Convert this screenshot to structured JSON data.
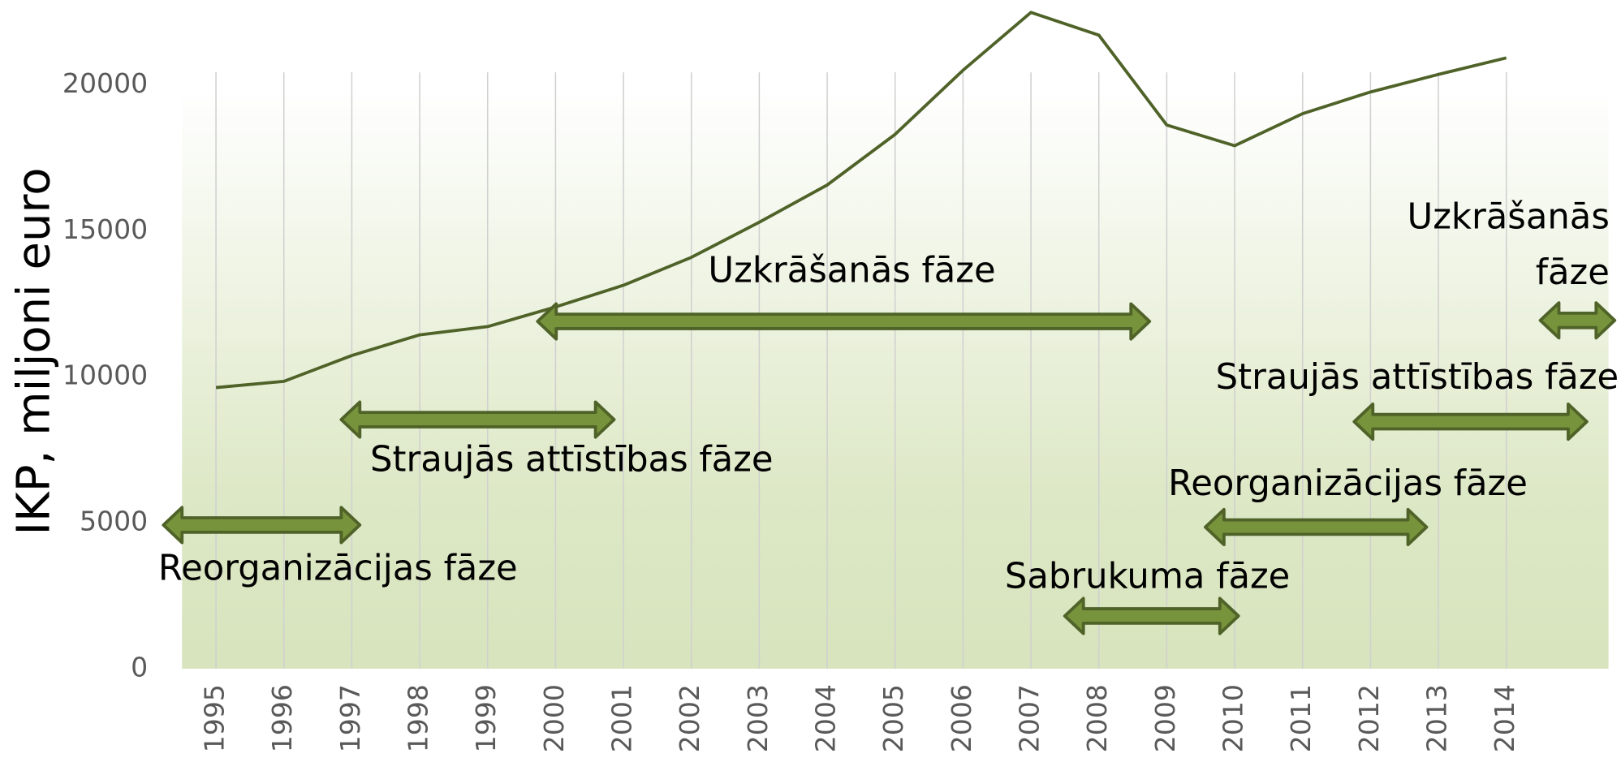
{
  "chart_data": {
    "type": "line",
    "ylabel": "IKP, miljoni euro",
    "categories": [
      "1995",
      "1996",
      "1997",
      "1998",
      "1999",
      "2000",
      "2001",
      "2002",
      "2003",
      "2004",
      "2005",
      "2006",
      "2007",
      "2008",
      "2009",
      "2010",
      "2011",
      "2012",
      "2013",
      "2014",
      null
    ],
    "series": [
      {
        "name": "IKP",
        "color": "#4f6228",
        "values": [
          9628,
          9841,
          10726,
          11434,
          11717,
          12389,
          13133,
          14088,
          15292,
          16566,
          18301,
          20496,
          22478,
          21699,
          18619,
          17912,
          19009,
          19752,
          20354,
          20920,
          null
        ]
      }
    ],
    "ylim": [
      0,
      23000
    ],
    "yticks": [
      0,
      5000,
      10000,
      15000,
      20000
    ],
    "grid": true,
    "annotations": [
      "Reorganizācijas fāze",
      "Straujās attīstības  fāze",
      "Uzkrāšanās fāze",
      "Sabrukuma fāze",
      "Reorganizācijas fāze",
      "Straujās attīstības fāze",
      "Uzkrāšanās",
      "fāze"
    ]
  }
}
